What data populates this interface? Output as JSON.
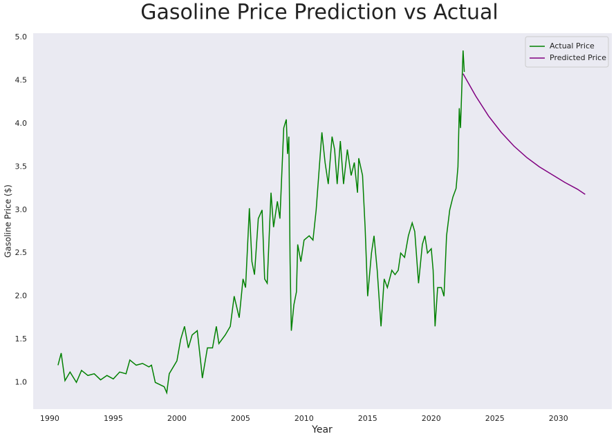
{
  "chart_data": {
    "type": "line",
    "title": "Gasoline Price Prediction vs Actual",
    "x_label": "Year",
    "y_label": "Gasoline Price ($)",
    "xlim": [
      1988.7,
      2034.2
    ],
    "ylim": [
      0.69,
      5.05
    ],
    "xticks": [
      1990,
      1995,
      2000,
      2005,
      2010,
      2015,
      2020,
      2025,
      2030
    ],
    "yticks": [
      {
        "value": 1,
        "label": "1.0"
      },
      1.5,
      {
        "value": 2,
        "label": "2.0"
      },
      2.5,
      {
        "value": 3,
        "label": "3.0"
      },
      3.5,
      {
        "value": 4,
        "label": "4.0"
      },
      4.5,
      {
        "value": 5,
        "label": "5.0"
      }
    ],
    "grid": false,
    "legend": "upper right",
    "background": "#eaeaf2",
    "series": [
      {
        "name": "Actual Price",
        "color": "#008000",
        "x": [
          1990.65,
          1990.9,
          1991.2,
          1991.6,
          1992.1,
          1992.5,
          1993.0,
          1993.5,
          1994.0,
          1994.5,
          1995.0,
          1995.5,
          1996.0,
          1996.3,
          1996.8,
          1997.3,
          1997.8,
          1998.0,
          1998.3,
          1999.0,
          1999.2,
          1999.4,
          2000.0,
          2000.3,
          2000.6,
          2000.9,
          2001.2,
          2001.6,
          2001.9,
          2002.0,
          2002.4,
          2002.8,
          2003.1,
          2003.3,
          2003.8,
          2004.2,
          2004.5,
          2004.9,
          2005.2,
          2005.4,
          2005.7,
          2005.9,
          2006.1,
          2006.4,
          2006.7,
          2006.9,
          2007.1,
          2007.4,
          2007.6,
          2007.9,
          2008.1,
          2008.4,
          2008.6,
          2008.7,
          2008.8,
          2008.9,
          2009.0,
          2009.2,
          2009.4,
          2009.5,
          2009.75,
          2010.0,
          2010.4,
          2010.7,
          2010.95,
          2011.2,
          2011.4,
          2011.65,
          2011.9,
          2012.2,
          2012.4,
          2012.6,
          2012.85,
          2013.1,
          2013.4,
          2013.7,
          2013.95,
          2014.2,
          2014.3,
          2014.6,
          2014.8,
          2015.0,
          2015.3,
          2015.5,
          2015.75,
          2016.05,
          2016.3,
          2016.55,
          2016.9,
          2017.15,
          2017.4,
          2017.6,
          2017.9,
          2018.2,
          2018.5,
          2018.7,
          2019.0,
          2019.3,
          2019.5,
          2019.7,
          2020.0,
          2020.15,
          2020.3,
          2020.5,
          2020.8,
          2021.0,
          2021.2,
          2021.45,
          2021.7,
          2021.95,
          2022.1,
          2022.2,
          2022.3,
          2022.4,
          2022.5,
          2022.6
        ],
        "values": [
          1.2,
          1.34,
          1.02,
          1.12,
          1.0,
          1.14,
          1.08,
          1.1,
          1.03,
          1.08,
          1.04,
          1.12,
          1.1,
          1.26,
          1.2,
          1.22,
          1.18,
          1.2,
          1.0,
          0.95,
          0.88,
          1.1,
          1.25,
          1.5,
          1.65,
          1.4,
          1.55,
          1.6,
          1.2,
          1.05,
          1.4,
          1.4,
          1.65,
          1.45,
          1.55,
          1.65,
          2.0,
          1.75,
          2.2,
          2.1,
          3.02,
          2.4,
          2.25,
          2.9,
          3.0,
          2.2,
          2.15,
          3.2,
          2.8,
          3.1,
          2.9,
          3.95,
          4.05,
          3.65,
          3.85,
          2.4,
          1.6,
          1.9,
          2.05,
          2.6,
          2.4,
          2.65,
          2.7,
          2.65,
          3.0,
          3.5,
          3.9,
          3.55,
          3.3,
          3.85,
          3.7,
          3.3,
          3.8,
          3.3,
          3.7,
          3.4,
          3.55,
          3.2,
          3.6,
          3.4,
          2.8,
          2.0,
          2.5,
          2.7,
          2.3,
          1.65,
          2.2,
          2.1,
          2.3,
          2.25,
          2.3,
          2.5,
          2.45,
          2.7,
          2.85,
          2.75,
          2.15,
          2.6,
          2.7,
          2.5,
          2.55,
          2.3,
          1.65,
          2.1,
          2.1,
          2.0,
          2.7,
          3.0,
          3.15,
          3.25,
          3.5,
          4.18,
          3.95,
          4.4,
          4.85,
          4.6
        ]
      },
      {
        "name": "Predicted Price",
        "color": "#800080",
        "x": [
          2022.5,
          2023.0,
          2023.5,
          2024.5,
          2025.5,
          2026.5,
          2027.5,
          2028.5,
          2029.5,
          2030.5,
          2031.5,
          2032.1
        ],
        "values": [
          4.58,
          4.45,
          4.32,
          4.09,
          3.9,
          3.74,
          3.61,
          3.5,
          3.41,
          3.32,
          3.24,
          3.18
        ]
      }
    ]
  }
}
